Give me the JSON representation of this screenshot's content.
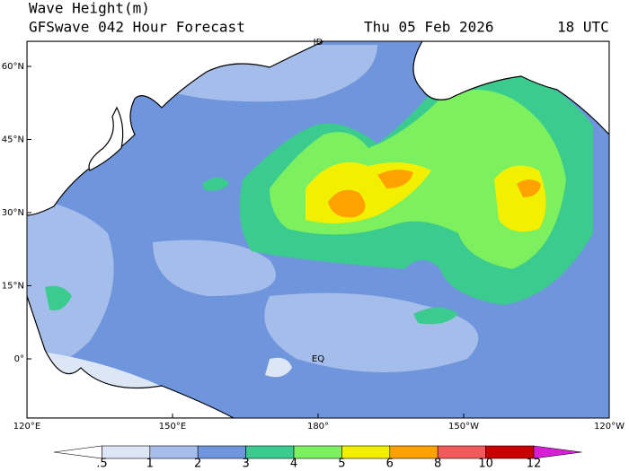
{
  "header": {
    "title": "Wave Height(m)",
    "subtitle": "GFSwave 042 Hour Forecast",
    "date": "Thu 05 Feb 2026",
    "time": "18 UTC"
  },
  "map": {
    "lat_labels": [
      "60°N",
      "45°N",
      "30°N",
      "15°N",
      "0°"
    ],
    "lon_labels": [
      "120°E",
      "150°E",
      "180°",
      "150°W",
      "120°W"
    ],
    "annotations": [
      "ID",
      "EQ"
    ]
  },
  "legend": {
    "labels": [
      ".5",
      "1",
      "2",
      "3",
      "4",
      "5",
      "6",
      "8",
      "10",
      "12"
    ],
    "colors": [
      "#ffffff",
      "#dde6f5",
      "#a4bdea",
      "#6f95dc",
      "#3ccb8e",
      "#7cf05e",
      "#f2f000",
      "#ffa200",
      "#f05a5a",
      "#c80000",
      "#d81fd8"
    ]
  }
}
